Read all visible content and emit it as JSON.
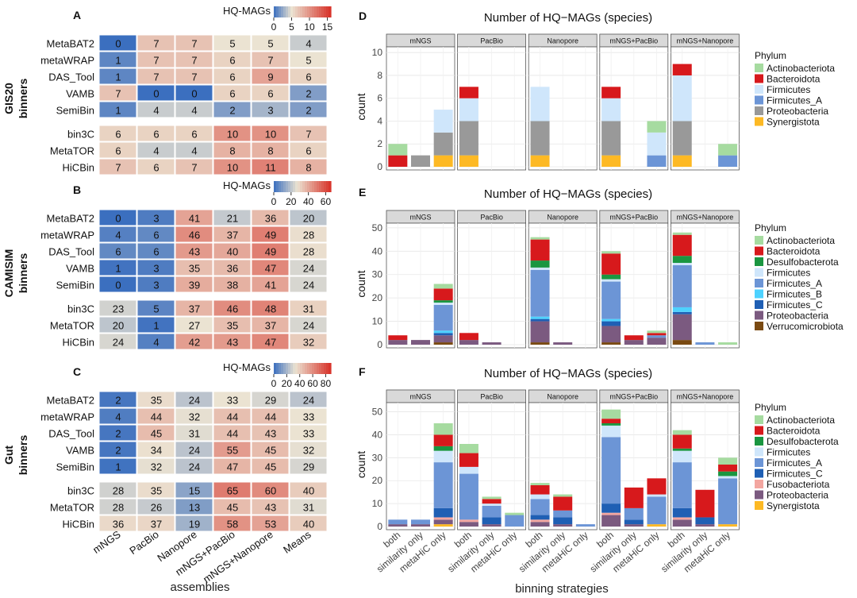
{
  "heatmap_columns": [
    "mNGS",
    "PacBio",
    "Nanopore",
    "mNGS+PacBio",
    "mNGS+Nanopore",
    "Means"
  ],
  "heatmap_xlabel": "assemblies",
  "bar_xlabel": "binning strategies",
  "legend_title_heat": "HQ-MAGs",
  "chart_data": [
    {
      "type": "heatmap",
      "panel": "A",
      "group_label": "GIS20",
      "group_label2": "binners",
      "rows": [
        "MetaBAT2",
        "metaWRAP",
        "DAS_Tool",
        "VAMB",
        "SemiBin",
        "bin3C",
        "MetaTOR",
        "HiCBin"
      ],
      "values": [
        [
          0,
          7,
          7,
          5,
          5,
          4
        ],
        [
          1,
          7,
          7,
          6,
          7,
          5
        ],
        [
          1,
          7,
          7,
          6,
          9,
          6
        ],
        [
          7,
          0,
          0,
          6,
          6,
          2
        ],
        [
          1,
          4,
          4,
          2,
          3,
          2
        ],
        [
          6,
          6,
          6,
          10,
          10,
          7
        ],
        [
          6,
          4,
          4,
          8,
          8,
          6
        ],
        [
          7,
          6,
          7,
          10,
          11,
          8
        ]
      ],
      "scale_min": 0,
      "scale_max": 16,
      "scale_mid": 5,
      "legend_ticks": [
        "0",
        "5",
        "10",
        "15"
      ],
      "legend_tick_values": [
        0,
        5,
        10,
        15
      ]
    },
    {
      "type": "heatmap",
      "panel": "B",
      "group_label": "CAMISIM",
      "group_label2": "binners",
      "rows": [
        "MetaBAT2",
        "metaWRAP",
        "DAS_Tool",
        "VAMB",
        "SemiBin",
        "bin3C",
        "MetaTOR",
        "HiCBin"
      ],
      "values": [
        [
          0,
          3,
          41,
          21,
          36,
          20
        ],
        [
          4,
          6,
          46,
          37,
          49,
          28
        ],
        [
          6,
          6,
          43,
          40,
          49,
          28
        ],
        [
          1,
          3,
          35,
          36,
          47,
          24
        ],
        [
          0,
          3,
          39,
          38,
          41,
          24
        ],
        [
          23,
          5,
          37,
          46,
          48,
          31
        ],
        [
          20,
          1,
          27,
          35,
          37,
          24
        ],
        [
          24,
          4,
          42,
          43,
          47,
          32
        ]
      ],
      "scale_min": 0,
      "scale_max": 66,
      "scale_mid": 27,
      "legend_ticks": [
        "0",
        "20",
        "40",
        "60"
      ],
      "legend_tick_values": [
        0,
        20,
        40,
        60
      ]
    },
    {
      "type": "heatmap",
      "panel": "C",
      "group_label": "Gut",
      "group_label2": "binners",
      "rows": [
        "MetaBAT2",
        "metaWRAP",
        "DAS_Tool",
        "VAMB",
        "SemiBin",
        "bin3C",
        "MetaTOR",
        "HiCBin"
      ],
      "values": [
        [
          2,
          35,
          24,
          33,
          29,
          24
        ],
        [
          4,
          44,
          32,
          44,
          44,
          33
        ],
        [
          2,
          45,
          31,
          44,
          43,
          33
        ],
        [
          2,
          34,
          24,
          55,
          45,
          32
        ],
        [
          1,
          32,
          24,
          47,
          45,
          29
        ],
        [
          28,
          35,
          15,
          65,
          60,
          40
        ],
        [
          28,
          26,
          13,
          45,
          43,
          31
        ],
        [
          36,
          37,
          19,
          58,
          53,
          40
        ]
      ],
      "scale_min": 0,
      "scale_max": 88,
      "scale_mid": 33,
      "legend_ticks": [
        "0",
        "20",
        "40",
        "60",
        "80"
      ],
      "legend_tick_values": [
        0,
        20,
        40,
        60,
        80
      ]
    },
    {
      "type": "bar",
      "stacked": true,
      "panel": "D",
      "title": "Number of HQ−MAGs (species)",
      "ylabel": "count",
      "ylim": [
        0,
        10.5
      ],
      "yticks": [
        "0",
        "2",
        "4",
        "6",
        "8",
        "10"
      ],
      "ytick_values": [
        0,
        2,
        4,
        6,
        8,
        10
      ],
      "facets": [
        "mNGS",
        "PacBio",
        "Nanopore",
        "mNGS+PacBio",
        "mNGS+Nanopore"
      ],
      "categories": [
        "both",
        "similarity only",
        "metaHiC only"
      ],
      "legend_title": "Phylum",
      "phyla": [
        "Actinobacteriota",
        "Bacteroidota",
        "Firmicutes",
        "Firmicutes_A",
        "Proteobacteria",
        "Synergistota"
      ],
      "colors": [
        "#a6dba0",
        "#d7191c",
        "#cfe6fb",
        "#6c95d6",
        "#999999",
        "#fdb924"
      ],
      "stack_order": [
        "Synergistota",
        "Proteobacteria",
        "Firmicutes_A",
        "Firmicutes",
        "Bacteroidota",
        "Actinobacteriota"
      ],
      "values": [
        [
          {
            "Synergistota": 0,
            "Proteobacteria": 0,
            "Bacteroidota": 1,
            "Actinobacteriota": 1
          },
          {
            "Proteobacteria": 1
          },
          {
            "Synergistota": 1,
            "Proteobacteria": 2,
            "Firmicutes": 2
          }
        ],
        [
          {
            "Synergistota": 1,
            "Proteobacteria": 3,
            "Firmicutes": 2,
            "Bacteroidota": 1
          },
          {},
          {}
        ],
        [
          {
            "Synergistota": 1,
            "Proteobacteria": 3,
            "Firmicutes": 3
          },
          {},
          {}
        ],
        [
          {
            "Synergistota": 1,
            "Proteobacteria": 3,
            "Firmicutes": 2,
            "Bacteroidota": 1
          },
          {},
          {
            "Firmicutes_A": 1,
            "Firmicutes": 2,
            "Actinobacteriota": 1
          }
        ],
        [
          {
            "Synergistota": 1,
            "Proteobacteria": 3,
            "Firmicutes": 4,
            "Bacteroidota": 1
          },
          {},
          {
            "Firmicutes_A": 1,
            "Actinobacteriota": 1
          }
        ]
      ]
    },
    {
      "type": "bar",
      "stacked": true,
      "panel": "E",
      "title": "Number of HQ−MAGs (species)",
      "ylabel": "count",
      "ylim": [
        0,
        52
      ],
      "yticks": [
        "0",
        "10",
        "20",
        "30",
        "40",
        "50"
      ],
      "ytick_values": [
        0,
        10,
        20,
        30,
        40,
        50
      ],
      "facets": [
        "mNGS",
        "PacBio",
        "Nanopore",
        "mNGS+PacBio",
        "mNGS+Nanopore"
      ],
      "categories": [
        "both",
        "similarity only",
        "metaHiC only"
      ],
      "legend_title": "Phylum",
      "phyla": [
        "Actinobacteriota",
        "Bacteroidota",
        "Desulfobacterota",
        "Firmicutes",
        "Firmicutes_A",
        "Firmicutes_B",
        "Firmicutes_C",
        "Proteobacteria",
        "Verrucomicrobiota"
      ],
      "colors": [
        "#a6dba0",
        "#d7191c",
        "#1a9641",
        "#cfe6fb",
        "#6c95d6",
        "#4dd2ff",
        "#1f5fb4",
        "#7b5a80",
        "#7a4a12"
      ],
      "stack_order": [
        "Verrucomicrobiota",
        "Proteobacteria",
        "Firmicutes_C",
        "Firmicutes_B",
        "Firmicutes_A",
        "Firmicutes",
        "Desulfobacterota",
        "Bacteroidota",
        "Actinobacteriota"
      ],
      "values": [
        [
          {
            "Proteobacteria": 2,
            "Bacteroidota": 2
          },
          {
            "Proteobacteria": 2
          },
          {
            "Verrucomicrobiota": 1,
            "Proteobacteria": 3,
            "Firmicutes_C": 1,
            "Firmicutes_B": 1,
            "Firmicutes_A": 11,
            "Firmicutes": 1,
            "Desulfobacterota": 1,
            "Bacteroidota": 5,
            "Actinobacteriota": 2
          }
        ],
        [
          {
            "Proteobacteria": 2,
            "Bacteroidota": 3
          },
          {
            "Proteobacteria": 1
          },
          {}
        ],
        [
          {
            "Verrucomicrobiota": 1,
            "Proteobacteria": 9,
            "Firmicutes_C": 1,
            "Firmicutes_B": 1,
            "Firmicutes_A": 20,
            "Firmicutes": 1,
            "Desulfobacterota": 3,
            "Bacteroidota": 9,
            "Actinobacteriota": 1
          },
          {
            "Proteobacteria": 1
          },
          {}
        ],
        [
          {
            "Verrucomicrobiota": 1,
            "Proteobacteria": 7,
            "Firmicutes_C": 2,
            "Firmicutes_B": 1,
            "Firmicutes_A": 16,
            "Firmicutes": 1,
            "Desulfobacterota": 2,
            "Bacteroidota": 9,
            "Actinobacteriota": 1
          },
          {
            "Proteobacteria": 2,
            "Bacteroidota": 2
          },
          {
            "Proteobacteria": 3,
            "Firmicutes_A": 1,
            "Bacteroidota": 1,
            "Actinobacteriota": 1
          }
        ],
        [
          {
            "Verrucomicrobiota": 2,
            "Proteobacteria": 11,
            "Firmicutes_C": 1,
            "Firmicutes_B": 2,
            "Firmicutes_A": 18,
            "Firmicutes": 1,
            "Desulfobacterota": 3,
            "Bacteroidota": 9,
            "Actinobacteriota": 1
          },
          {
            "Firmicutes_A": 1
          },
          {
            "Actinobacteriota": 1
          }
        ]
      ]
    },
    {
      "type": "bar",
      "stacked": true,
      "panel": "F",
      "title": "Number of HQ−MAGs (species)",
      "ylabel": "count",
      "ylim": [
        0,
        54
      ],
      "yticks": [
        "0",
        "10",
        "20",
        "30",
        "40",
        "50"
      ],
      "ytick_values": [
        0,
        10,
        20,
        30,
        40,
        50
      ],
      "facets": [
        "mNGS",
        "PacBio",
        "Nanopore",
        "mNGS+PacBio",
        "mNGS+Nanopore"
      ],
      "categories": [
        "both",
        "similarity only",
        "metaHiC only"
      ],
      "legend_title": "Phylum",
      "phyla": [
        "Actinobacteriota",
        "Bacteroidota",
        "Desulfobacterota",
        "Firmicutes",
        "Firmicutes_A",
        "Firmicutes_C",
        "Fusobacteriota",
        "Proteobacteria",
        "Synergistota"
      ],
      "colors": [
        "#a6dba0",
        "#d7191c",
        "#1a9641",
        "#cfe6fb",
        "#6c95d6",
        "#1f5fb4",
        "#f3a6a0",
        "#7b5a80",
        "#fdb924"
      ],
      "stack_order": [
        "Synergistota",
        "Proteobacteria",
        "Fusobacteriota",
        "Firmicutes_C",
        "Firmicutes_A",
        "Firmicutes",
        "Desulfobacterota",
        "Bacteroidota",
        "Actinobacteriota"
      ],
      "values": [
        [
          {
            "Proteobacteria": 1,
            "Firmicutes_A": 2
          },
          {
            "Proteobacteria": 1,
            "Firmicutes_A": 2
          },
          {
            "Synergistota": 1,
            "Proteobacteria": 2,
            "Fusobacteriota": 1,
            "Firmicutes_C": 4,
            "Firmicutes_A": 20,
            "Firmicutes": 5,
            "Desulfobacterota": 2,
            "Bacteroidota": 5,
            "Actinobacteriota": 5
          }
        ],
        [
          {
            "Proteobacteria": 2,
            "Fusobacteriota": 1,
            "Firmicutes_A": 20,
            "Firmicutes": 3,
            "Bacteroidota": 6,
            "Actinobacteriota": 4
          },
          {
            "Proteobacteria": 1,
            "Firmicutes_C": 3,
            "Firmicutes_A": 5,
            "Firmicutes": 1,
            "Bacteroidota": 2,
            "Actinobacteriota": 1
          },
          {
            "Firmicutes_A": 5,
            "Actinobacteriota": 1
          }
        ],
        [
          {
            "Proteobacteria": 2,
            "Fusobacteriota": 1,
            "Firmicutes_C": 2,
            "Firmicutes_A": 7,
            "Firmicutes": 2,
            "Bacteroidota": 4,
            "Actinobacteriota": 1
          },
          {
            "Proteobacteria": 1,
            "Firmicutes_C": 3,
            "Firmicutes_A": 3,
            "Bacteroidota": 6,
            "Actinobacteriota": 1
          },
          {
            "Firmicutes_A": 1
          }
        ],
        [
          {
            "Proteobacteria": 5,
            "Fusobacteriota": 1,
            "Firmicutes_C": 4,
            "Firmicutes_A": 29,
            "Firmicutes": 5,
            "Desulfobacterota": 1,
            "Bacteroidota": 2,
            "Actinobacteriota": 4
          },
          {
            "Proteobacteria": 1,
            "Firmicutes_C": 2,
            "Firmicutes_A": 5,
            "Bacteroidota": 9
          },
          {
            "Synergistota": 1,
            "Firmicutes_A": 12,
            "Firmicutes": 1,
            "Bacteroidota": 7
          }
        ],
        [
          {
            "Proteobacteria": 3,
            "Fusobacteriota": 1,
            "Firmicutes_C": 4,
            "Firmicutes_A": 20,
            "Firmicutes": 5,
            "Desulfobacterota": 1,
            "Bacteroidota": 6,
            "Actinobacteriota": 2
          },
          {
            "Proteobacteria": 1,
            "Firmicutes_C": 3,
            "Bacteroidota": 12
          },
          {
            "Synergistota": 1,
            "Firmicutes_A": 20,
            "Firmicutes": 1,
            "Desulfobacterota": 2,
            "Bacteroidota": 3,
            "Actinobacteriota": 3
          }
        ]
      ]
    }
  ]
}
